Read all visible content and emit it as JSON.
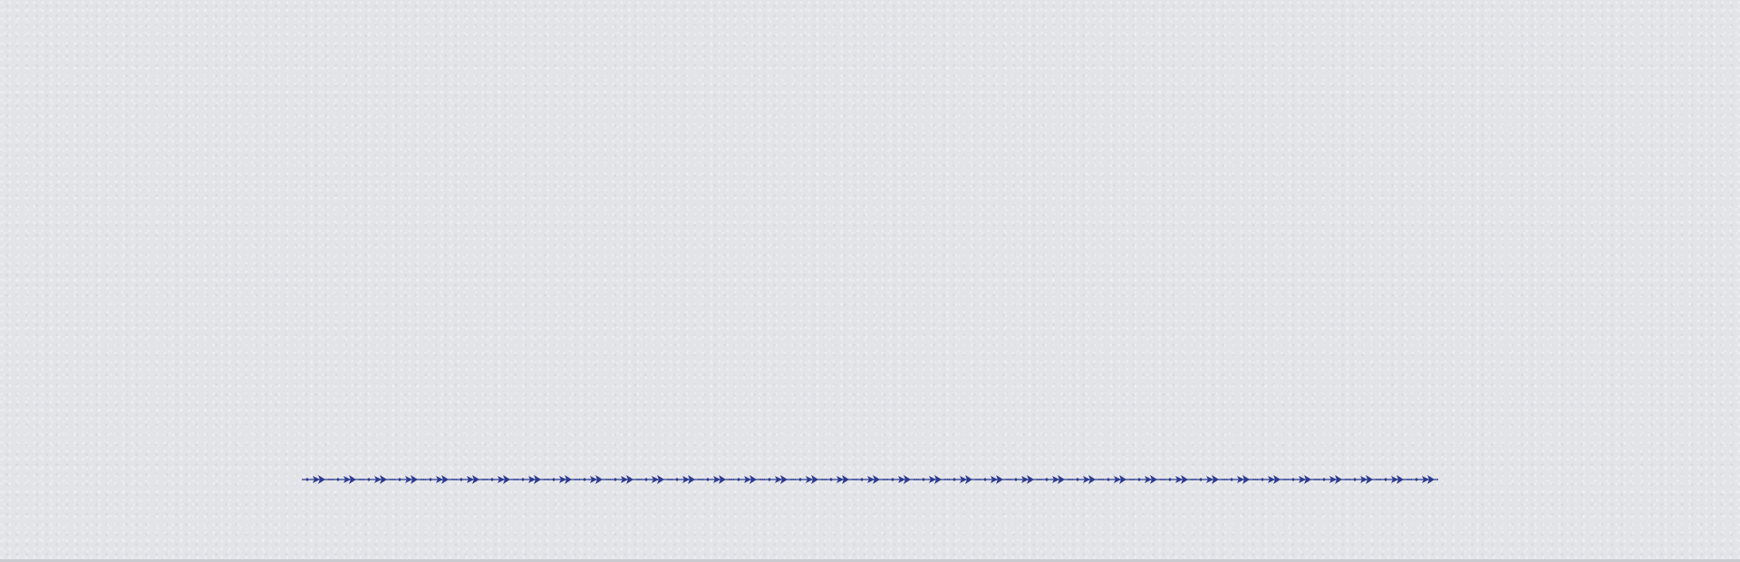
{
  "page": {
    "background_color": "#e3e4e8",
    "edge_color": "#c9cad0"
  },
  "ornament": {
    "icon": "fleur-ornament-border-icon",
    "color": "#2b3a8f"
  }
}
